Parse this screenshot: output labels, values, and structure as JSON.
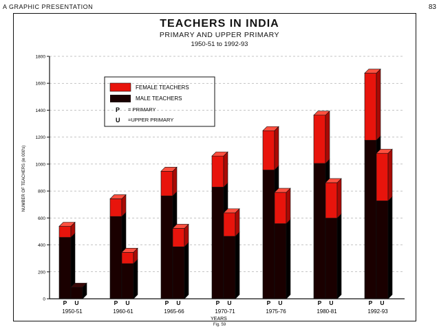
{
  "page": {
    "header_left": "A GRAPHIC PRESENTATION",
    "header_right": "83",
    "figure_label": "Fig. 59"
  },
  "legend": {
    "female": "FEMALE TEACHERS",
    "male": "MALE TEACHERS",
    "p_key": "P",
    "p_text": "= PRIMARY",
    "u_key": "U",
    "u_text": "=UPPER PRIMARY"
  },
  "colors": {
    "female": "#e8140c",
    "male": "#1a0000",
    "axis": "#111111"
  },
  "chart_data": {
    "type": "bar",
    "title": "TEACHERS IN INDIA",
    "subtitle": "PRIMARY AND UPPER PRIMARY",
    "period": "1950-51 to 1992-93",
    "xlabel": "YEARS",
    "ylabel": "NUMBER OF TEACHERS (in 000's)",
    "ylim": [
      0,
      1800
    ],
    "yticks": [
      0,
      200,
      400,
      600,
      800,
      1000,
      1200,
      1400,
      1600,
      1800
    ],
    "categories": [
      "1950-51",
      "1960-61",
      "1965-66",
      "1970-71",
      "1975-76",
      "1980-81",
      "1992-93"
    ],
    "bar_labels": [
      "P",
      "U"
    ],
    "series": [
      {
        "name": "P",
        "total": [
          538,
          742,
          947,
          1060,
          1248,
          1363,
          1675
        ],
        "female": [
          82,
          131,
          183,
          231,
          292,
          358,
          498
        ]
      },
      {
        "name": "U",
        "total": [
          86,
          345,
          523,
          638,
          790,
          862,
          1080
        ],
        "female": [
          0,
          84,
          137,
          174,
          232,
          263,
          353
        ]
      }
    ],
    "stack_order": [
      "male",
      "female"
    ]
  }
}
